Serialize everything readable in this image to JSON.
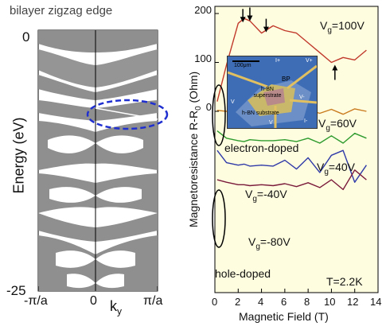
{
  "band_panel": {
    "title": "bilayer zigzag edge",
    "ylabel": "Energy (eV)",
    "xlabel": "k",
    "xlabel_sub": "y",
    "y_ticks": [
      "0",
      "-25"
    ],
    "x_ticks": [
      "-π/a",
      "0",
      "π/a"
    ],
    "fill_color": "#8f8f8f",
    "highlight_color": "#1f2fd0"
  },
  "chart_data": {
    "type": "line",
    "title": "",
    "xlabel": "Magnetic Field (T)",
    "ylabel": "Magnetoresistance R-R",
    "ylabel_sub": "0",
    "ylabel_unit": " (Ohm)",
    "xlim": [
      0,
      14
    ],
    "ylim_top_scale": [
      0,
      200
    ],
    "x_ticks": [
      "0",
      "2",
      "4",
      "6",
      "8",
      "10",
      "12",
      "14"
    ],
    "y_ticks": [
      "0",
      "100",
      "200"
    ],
    "x_values": [
      0.2,
      1,
      2,
      2.5,
      3,
      4,
      5,
      6,
      7,
      8,
      9,
      10,
      11,
      12,
      13
    ],
    "series": [
      {
        "name": "V",
        "sub": "g",
        "label_value": "=100V",
        "color": "#c0392b",
        "values": [
          20,
          95,
          180,
          190,
          185,
          160,
          175,
          165,
          160,
          140,
          120,
          100,
          110,
          105,
          125
        ]
      },
      {
        "name": "V",
        "sub": "g",
        "label_value": "=60V",
        "color": "#c97a1d",
        "values": [
          2,
          0,
          0,
          2,
          0,
          2,
          -2,
          2,
          -3,
          3,
          -4,
          4,
          -6,
          5,
          0
        ]
      },
      {
        "name": "V",
        "sub": "g",
        "label_value": "=40V",
        "color": "#2e9b2e",
        "values": [
          -40,
          -55,
          -60,
          -62,
          -58,
          -60,
          -60,
          -58,
          -62,
          -55,
          -65,
          -50,
          -65,
          -45,
          -55
        ]
      },
      {
        "name": "V",
        "sub": "g",
        "label_value": "=-40V",
        "color": "#2f3aa8",
        "values": [
          -80,
          -105,
          -110,
          -108,
          -112,
          -110,
          -112,
          -100,
          -118,
          -95,
          -125,
          -90,
          -80,
          -145,
          -110
        ]
      },
      {
        "name": "V",
        "sub": "g",
        "label_value": "=-80V",
        "color": "#7a1a3a",
        "values": [
          -140,
          -145,
          -150,
          -150,
          -152,
          -150,
          -152,
          -148,
          -154,
          -146,
          -156,
          -140,
          -160,
          -120,
          -140
        ]
      }
    ],
    "annotations": [
      "electron-doped",
      "hole-doped",
      "T=2.2K"
    ],
    "arrow_fields": [
      2.4,
      3.0,
      4.4,
      10.3
    ]
  },
  "inset": {
    "scale_label": "100μm",
    "labels": [
      "I+",
      "V+",
      "BP",
      "h-BN superstrate",
      "h-BN substrate",
      "V-",
      "I-",
      "V",
      "V"
    ]
  }
}
